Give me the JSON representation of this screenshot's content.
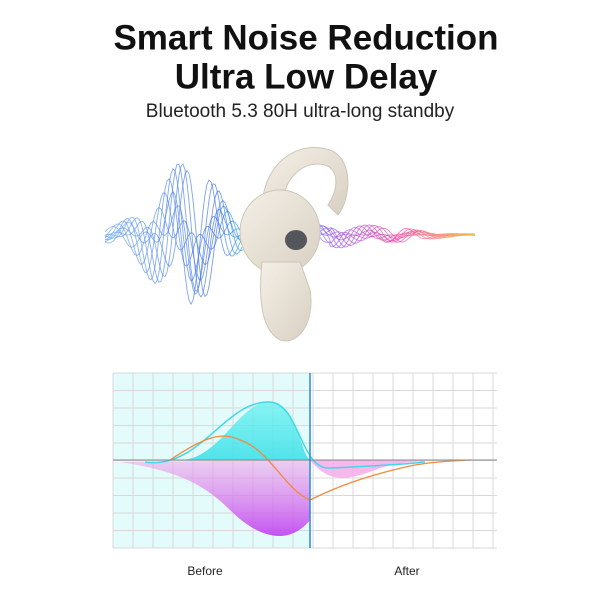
{
  "header": {
    "title_lines": [
      "Smart Noise Reduction",
      "Ultra Low Delay"
    ],
    "subtitle": "Bluetooth 5.3 80H ultra-long standby"
  },
  "chart_labels": {
    "before": "Before",
    "after": "After"
  }
}
